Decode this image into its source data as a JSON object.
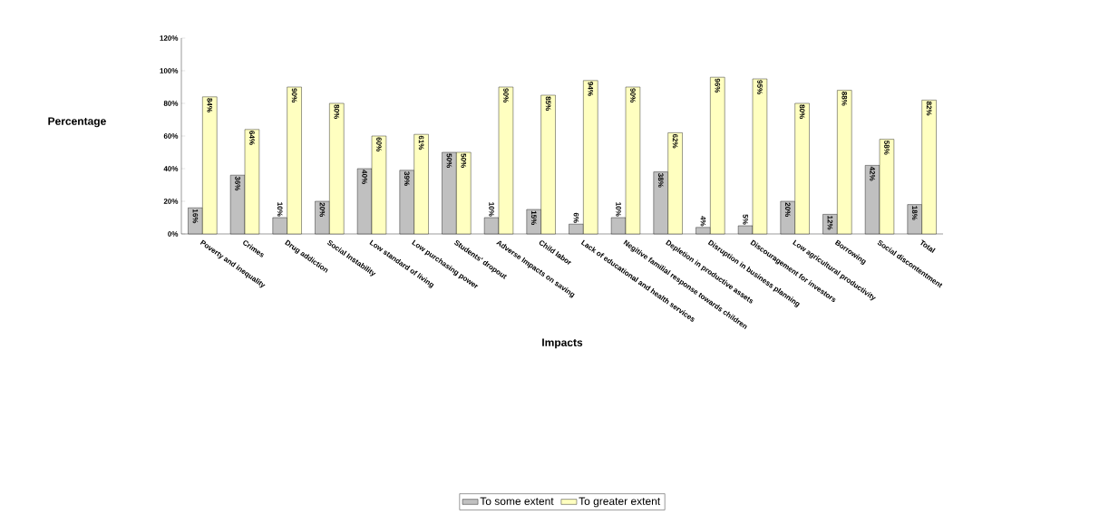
{
  "chart_data": {
    "type": "bar",
    "xlabel": "Impacts",
    "ylabel": "Percentage",
    "categories": [
      "Poverty and inequality",
      "Crimes",
      "Drug addiction",
      "Social Instability",
      "Low standard of living",
      "Low purchasing power",
      "Students' dropout",
      "Adverse Impacts on saving",
      "Child labor",
      "Lack of  educational and health services",
      "Negitive familial response towards children",
      "Depletion in productive assets",
      "Disruption in  business planning",
      "Discouragement for investors",
      "Low agricultural productivity",
      "Borrowing",
      "Social discontentment",
      "Total"
    ],
    "series": [
      {
        "name": "To some extent",
        "color": "#c0c0c0",
        "values": [
          16,
          36,
          10,
          20,
          40,
          39,
          50,
          10,
          15,
          6,
          10,
          38,
          4,
          5,
          20,
          12,
          42,
          18
        ],
        "value_labels": [
          "16%",
          "36%",
          "10%",
          "20%",
          "40%",
          "39%",
          "50%",
          "10%",
          "15%",
          "6%",
          "10%",
          "38%",
          "4%",
          "5%",
          "20%",
          "12%",
          "42%",
          "18%"
        ]
      },
      {
        "name": "To greater extent",
        "color": "#ffffc0",
        "values": [
          84,
          64,
          90,
          80,
          60,
          61,
          50,
          90,
          85,
          94,
          90,
          62,
          96,
          95,
          80,
          88,
          58,
          82
        ],
        "value_labels": [
          "84%",
          "64%",
          "90%",
          "80%",
          "60%",
          "61%",
          "50%",
          "90%",
          "85%",
          "94%",
          "90%",
          "62%",
          "96%",
          "95%",
          "80%",
          "88%",
          "58%",
          "82%"
        ]
      }
    ],
    "ylim": [
      0,
      120
    ],
    "yticks": [
      {
        "value": 0,
        "label": "0%"
      },
      {
        "value": 20,
        "label": "20%"
      },
      {
        "value": 40,
        "label": "40%"
      },
      {
        "value": 60,
        "label": "60%"
      },
      {
        "value": 80,
        "label": "80%"
      },
      {
        "value": 100,
        "label": "100%"
      },
      {
        "value": 120,
        "label": "120%"
      }
    ],
    "grid": false,
    "legend": "bottom"
  }
}
